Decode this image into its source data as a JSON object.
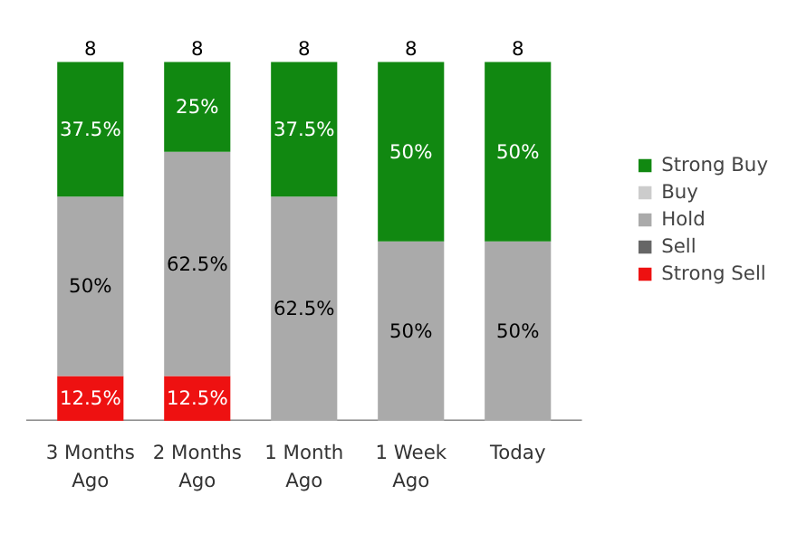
{
  "chart_data": {
    "type": "bar",
    "stacked": true,
    "categories": [
      "3 Months\nAgo",
      "2 Months\nAgo",
      "1 Month\nAgo",
      "1 Week\nAgo",
      "Today"
    ],
    "series": [
      {
        "name": "Strong Sell",
        "color": "#ee1111",
        "values": [
          12.5,
          12.5,
          0,
          0,
          0
        ],
        "value_labels": [
          "12.5%",
          "12.5%",
          null,
          null,
          null
        ]
      },
      {
        "name": "Sell",
        "color": "#666666",
        "values": [
          0,
          0,
          0,
          0,
          0
        ],
        "value_labels": [
          null,
          null,
          null,
          null,
          null
        ]
      },
      {
        "name": "Hold",
        "color": "#aaaaaa",
        "values": [
          50,
          62.5,
          62.5,
          50,
          50
        ],
        "value_labels": [
          "50%",
          "62.5%",
          "62.5%",
          "50%",
          "50%"
        ]
      },
      {
        "name": "Buy",
        "color": "#cccccc",
        "values": [
          0,
          0,
          0,
          0,
          0
        ],
        "value_labels": [
          null,
          null,
          null,
          null,
          null
        ]
      },
      {
        "name": "Strong Buy",
        "color": "#118811",
        "values": [
          37.5,
          25,
          37.5,
          50,
          50
        ],
        "value_labels": [
          "37.5%",
          "25%",
          "37.5%",
          "50%",
          "50%"
        ]
      }
    ],
    "annotations": [
      {
        "text": "8",
        "x": "3 Months\nAgo",
        "y": 100
      },
      {
        "text": "8",
        "x": "2 Months\nAgo",
        "y": 100
      },
      {
        "text": "8",
        "x": "1 Month\nAgo",
        "y": 100
      },
      {
        "text": "8",
        "x": "1 Week\nAgo",
        "y": 100
      },
      {
        "text": "8",
        "x": "Today",
        "y": 100
      }
    ],
    "legend": "right"
  }
}
